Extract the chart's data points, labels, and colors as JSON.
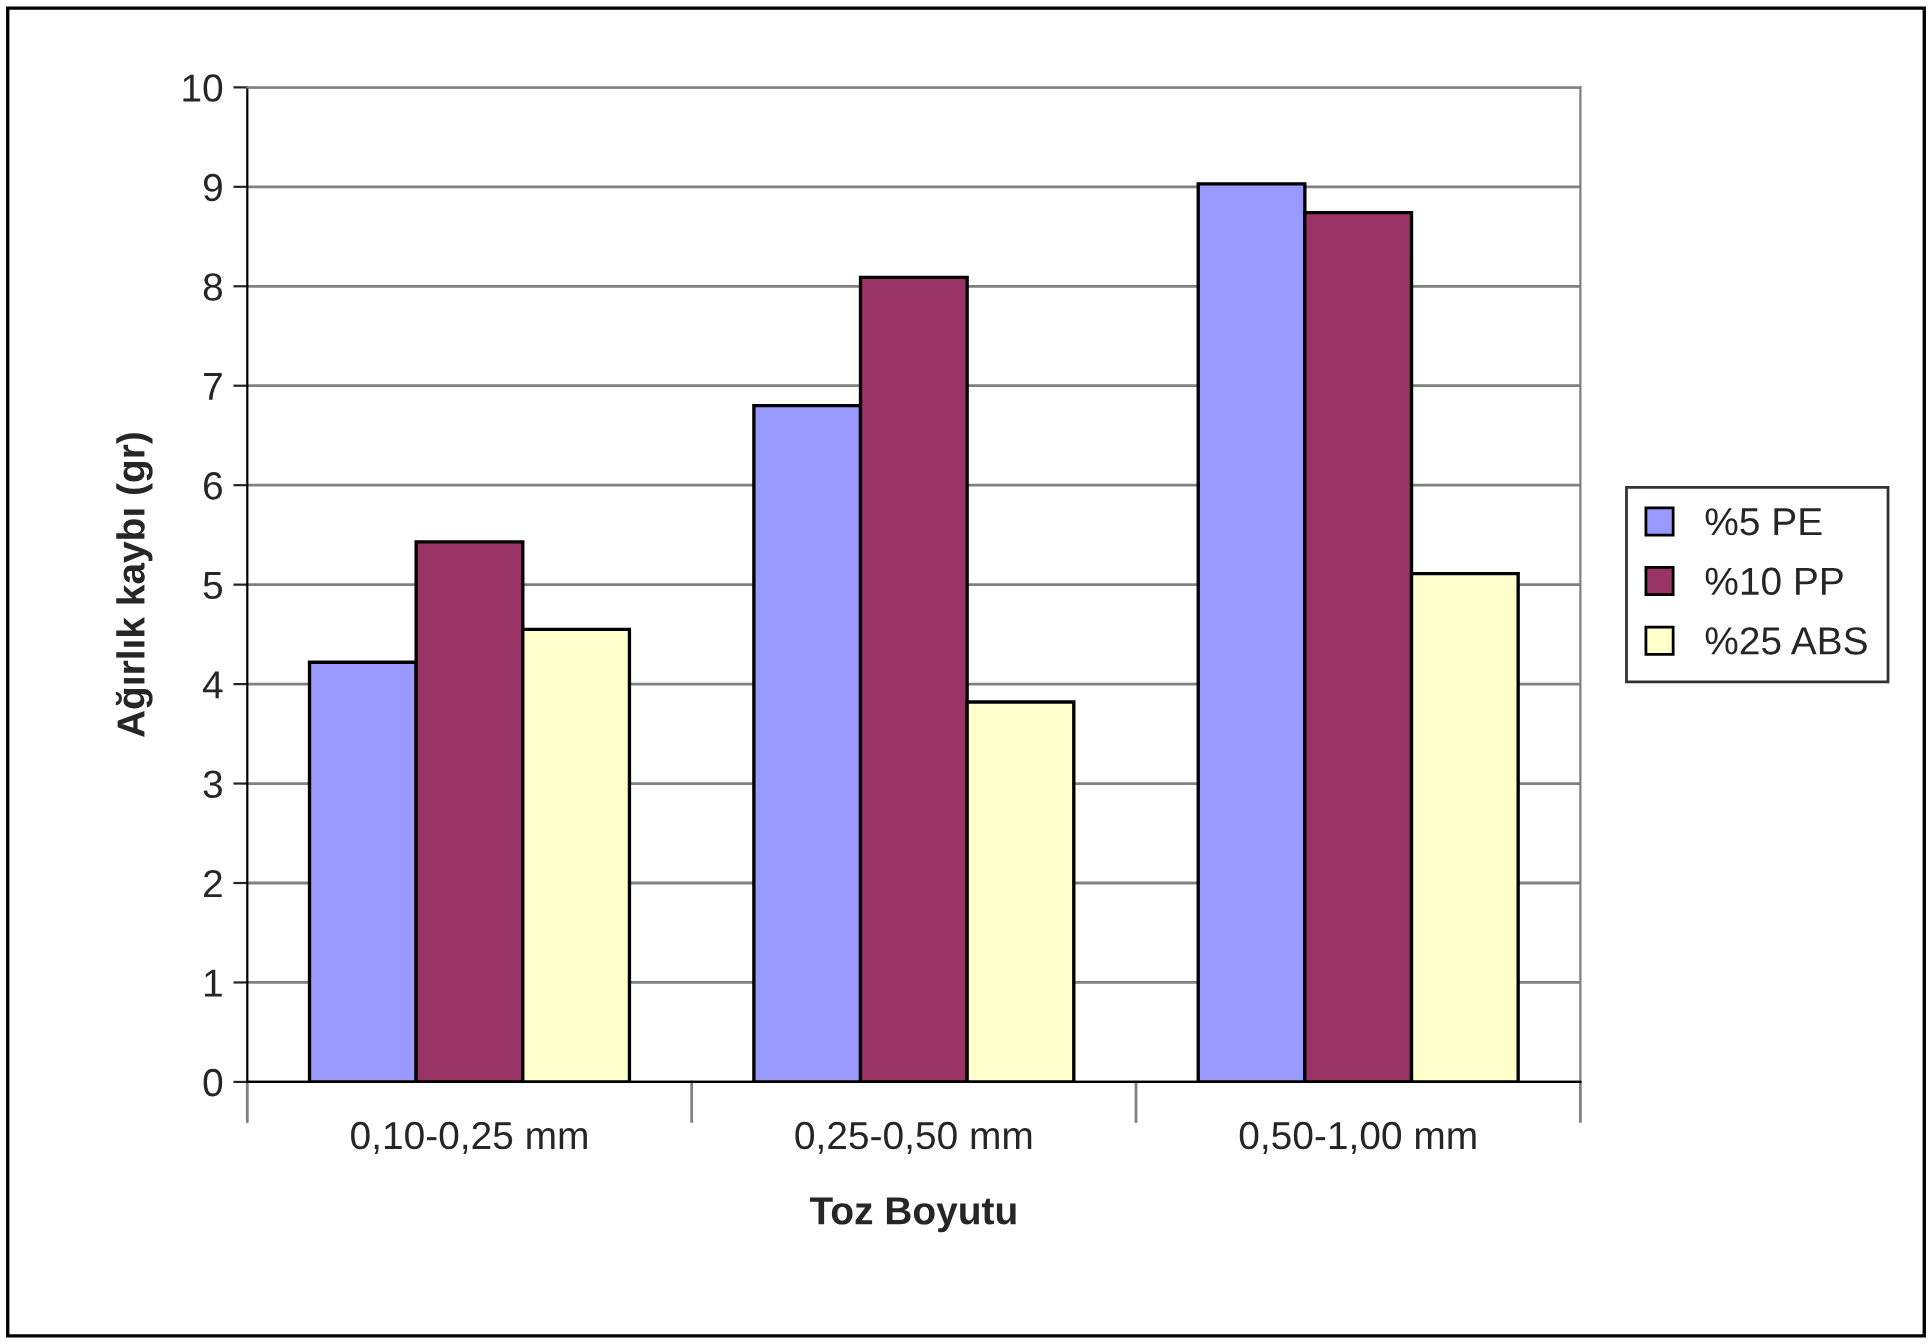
{
  "chart_data": {
    "type": "bar",
    "xlabel": "Toz Boyutu",
    "ylabel": "Ağırlık kaybı (gr)",
    "categories": [
      "0,10-0,25 mm",
      "0,25-0,50 mm",
      "0,50-1,00 mm"
    ],
    "series": [
      {
        "name": "%5 PE",
        "color": "#9999ff",
        "values": [
          4.22,
          6.8,
          9.03
        ]
      },
      {
        "name": "%10 PP",
        "color": "#993366",
        "values": [
          5.43,
          8.09,
          8.74
        ]
      },
      {
        "name": "%25 ABS",
        "color": "#ffffcc",
        "values": [
          4.55,
          3.82,
          5.11
        ]
      }
    ],
    "ylim": [
      0,
      10
    ],
    "yticks": [
      0,
      1,
      2,
      3,
      4,
      5,
      6,
      7,
      8,
      9,
      10
    ],
    "grid": "y",
    "legend": "right"
  }
}
